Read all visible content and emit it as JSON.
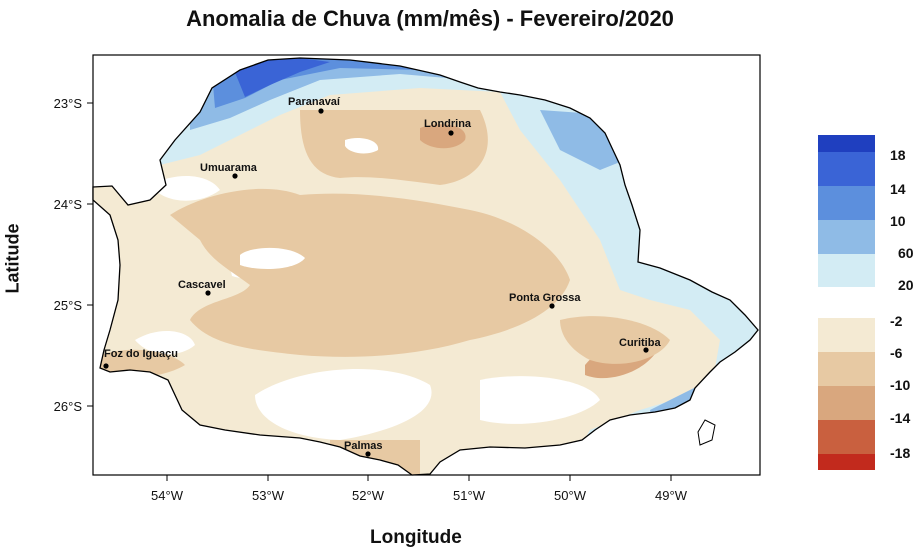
{
  "title": "Anomalia de Chuva (mm/mês) - Fevereiro/2020",
  "x_axis": {
    "label": "Longitude",
    "ticks": [
      "54°W",
      "53°W",
      "52°W",
      "51°W",
      "50°W",
      "49°W"
    ]
  },
  "y_axis": {
    "label": "Latitude",
    "ticks": [
      "23°S",
      "24°S",
      "25°S",
      "26°S"
    ]
  },
  "cities": [
    {
      "name": "Paranavaí"
    },
    {
      "name": "Londrina"
    },
    {
      "name": "Umuarama"
    },
    {
      "name": "Cascavel"
    },
    {
      "name": "Ponta Grossa"
    },
    {
      "name": "Curitiba"
    },
    {
      "name": "Foz do Iguaçu"
    },
    {
      "name": "Palmas"
    }
  ],
  "colorbar": {
    "positive": [
      {
        "label": "18",
        "color": "#1f3fbf"
      },
      {
        "label": "14",
        "color": "#3a64d6"
      },
      {
        "label": "10",
        "color": "#5c8fdd"
      },
      {
        "label": "60",
        "color": "#8fbbe6"
      },
      {
        "label": "20",
        "color": "#d3ecf4"
      }
    ],
    "negative": [
      {
        "label": "-2",
        "color": "#f4ead3"
      },
      {
        "label": "-6",
        "color": "#e7c9a3"
      },
      {
        "label": "-10",
        "color": "#d9a77e"
      },
      {
        "label": "-14",
        "color": "#c9603f"
      },
      {
        "label": "-18",
        "color": "#c22a1d"
      }
    ]
  },
  "colors": {
    "state_outline": "#000000",
    "map_frame": "#000000"
  }
}
